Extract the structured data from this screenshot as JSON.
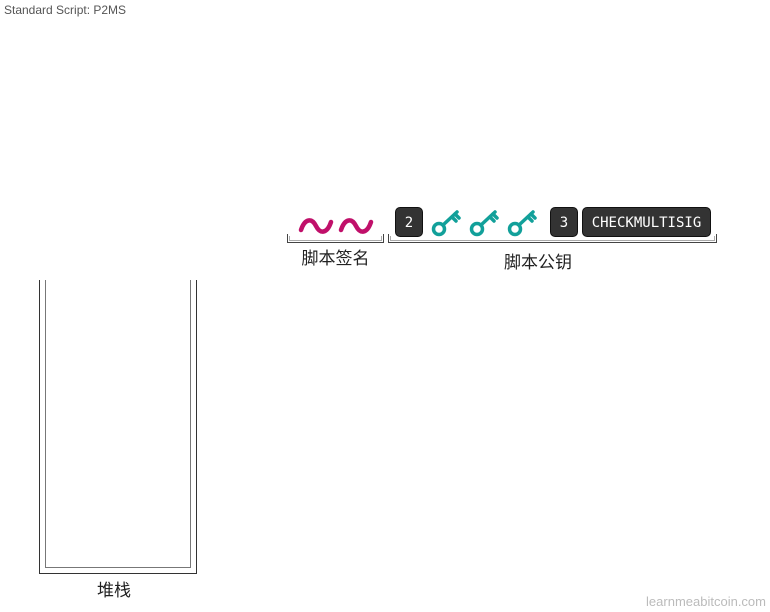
{
  "header": {
    "title": "Standard Script: P2MS"
  },
  "script_sig": {
    "label": "脚本签名",
    "signature_color": "#c0106a"
  },
  "script_pubkey": {
    "label": "脚本公钥",
    "m": "2",
    "n": "3",
    "opcode": "CHECKMULTISIG",
    "key_color": "#12a09a"
  },
  "stack": {
    "label": "堆栈"
  },
  "footer": {
    "site": "learnmeabitcoin.com"
  }
}
